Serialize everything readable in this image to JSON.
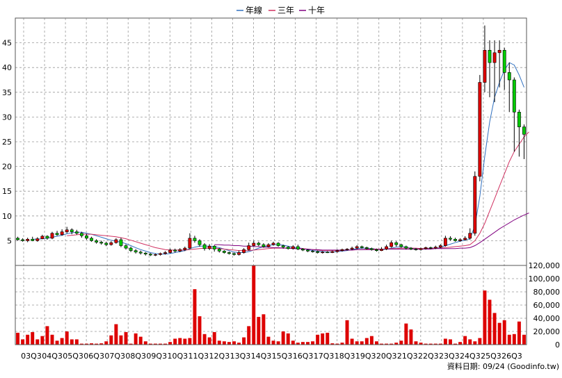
{
  "chart_data": [
    {
      "type": "candlestick",
      "legend": [
        {
          "name": "年線",
          "color": "#3070c0"
        },
        {
          "name": "三年",
          "color": "#d03060"
        },
        {
          "name": "十年",
          "color": "#800080"
        }
      ],
      "legend_placement": "top-center",
      "up_color": "#dd0000",
      "down_color": "#00cc00",
      "ylim": [
        0,
        50
      ],
      "y_ticks": [
        5,
        10,
        15,
        20,
        25,
        30,
        35,
        40,
        45
      ],
      "grid": true,
      "x_labels": [
        "03Q3",
        "04Q3",
        "05Q3",
        "06Q3",
        "07Q3",
        "08Q3",
        "09Q3",
        "10Q3",
        "11Q3",
        "12Q3",
        "13Q3",
        "14Q3",
        "15Q3",
        "16Q3",
        "17Q3",
        "18Q3",
        "19Q3",
        "20Q3",
        "21Q3",
        "22Q3",
        "23Q3",
        "24Q3",
        "25Q3",
        "26Q3"
      ],
      "candles": [
        [
          5.5,
          5.2,
          5.8,
          5.0
        ],
        [
          5.2,
          5.0,
          5.5,
          4.8
        ],
        [
          5.0,
          5.3,
          5.6,
          4.7
        ],
        [
          5.3,
          5.0,
          5.8,
          4.9
        ],
        [
          5.0,
          5.4,
          5.7,
          4.8
        ],
        [
          5.4,
          5.9,
          6.2,
          5.3
        ],
        [
          5.9,
          5.5,
          6.1,
          5.2
        ],
        [
          5.5,
          6.5,
          6.8,
          5.3
        ],
        [
          6.5,
          6.2,
          7.0,
          6.0
        ],
        [
          6.2,
          6.8,
          7.3,
          6.0
        ],
        [
          6.8,
          7.2,
          7.8,
          6.5
        ],
        [
          7.2,
          6.8,
          7.5,
          6.3
        ],
        [
          6.8,
          6.5,
          7.2,
          6.2
        ],
        [
          6.5,
          6.0,
          6.8,
          5.6
        ],
        [
          6.0,
          5.5,
          6.4,
          5.2
        ],
        [
          5.5,
          5.0,
          5.8,
          4.8
        ],
        [
          5.0,
          4.7,
          5.3,
          4.4
        ],
        [
          4.7,
          4.5,
          5.0,
          4.2
        ],
        [
          4.5,
          4.2,
          4.8,
          3.9
        ],
        [
          4.2,
          4.6,
          4.9,
          4.0
        ],
        [
          4.6,
          5.2,
          5.5,
          4.4
        ],
        [
          5.2,
          4.0,
          5.6,
          3.7
        ],
        [
          4.0,
          3.5,
          4.3,
          3.2
        ],
        [
          3.5,
          3.0,
          3.8,
          2.7
        ],
        [
          3.0,
          2.7,
          3.3,
          2.4
        ],
        [
          2.7,
          2.5,
          3.0,
          2.2
        ],
        [
          2.5,
          2.3,
          2.7,
          2.0
        ],
        [
          2.3,
          2.1,
          2.5,
          1.9
        ],
        [
          2.1,
          2.2,
          2.4,
          1.9
        ],
        [
          2.2,
          2.4,
          2.6,
          2.0
        ],
        [
          2.4,
          2.6,
          2.9,
          2.2
        ],
        [
          2.6,
          3.1,
          3.4,
          2.4
        ],
        [
          3.1,
          2.9,
          3.4,
          2.6
        ],
        [
          2.9,
          3.2,
          3.5,
          2.7
        ],
        [
          3.2,
          3.5,
          3.8,
          2.9
        ],
        [
          3.5,
          5.5,
          6.5,
          3.3
        ],
        [
          5.5,
          5.0,
          6.0,
          4.6
        ],
        [
          5.0,
          4.2,
          5.3,
          3.8
        ],
        [
          4.2,
          3.4,
          4.5,
          3.0
        ],
        [
          3.4,
          3.9,
          4.3,
          3.1
        ],
        [
          3.9,
          3.3,
          4.1,
          2.8
        ],
        [
          3.3,
          2.9,
          3.5,
          2.6
        ],
        [
          2.9,
          2.6,
          3.1,
          2.4
        ],
        [
          2.6,
          2.4,
          2.8,
          2.2
        ],
        [
          2.4,
          2.2,
          2.6,
          2.0
        ],
        [
          2.2,
          2.6,
          3.0,
          2.0
        ],
        [
          2.6,
          3.2,
          3.5,
          2.4
        ],
        [
          3.2,
          4.0,
          4.6,
          3.0
        ],
        [
          4.0,
          4.5,
          5.0,
          3.8
        ],
        [
          4.5,
          4.2,
          4.8,
          3.9
        ],
        [
          4.2,
          3.8,
          4.5,
          3.6
        ],
        [
          3.8,
          4.2,
          4.5,
          3.6
        ],
        [
          4.2,
          4.5,
          4.8,
          4.0
        ],
        [
          4.5,
          4.0,
          4.7,
          3.8
        ],
        [
          4.0,
          3.7,
          4.2,
          3.4
        ],
        [
          3.7,
          3.4,
          3.9,
          3.2
        ],
        [
          3.4,
          3.8,
          4.1,
          3.2
        ],
        [
          3.8,
          3.3,
          4.2,
          3.1
        ],
        [
          3.3,
          3.1,
          3.5,
          2.9
        ],
        [
          3.1,
          2.9,
          3.3,
          2.7
        ],
        [
          2.9,
          2.8,
          3.1,
          2.6
        ],
        [
          2.8,
          2.6,
          3.0,
          2.4
        ],
        [
          2.6,
          2.7,
          2.9,
          2.4
        ],
        [
          2.7,
          2.6,
          2.9,
          2.5
        ],
        [
          2.6,
          2.8,
          3.0,
          2.5
        ],
        [
          2.8,
          3.0,
          3.2,
          2.6
        ],
        [
          3.0,
          3.2,
          3.4,
          2.8
        ],
        [
          3.2,
          3.3,
          3.5,
          3.0
        ],
        [
          3.3,
          3.5,
          3.8,
          3.1
        ],
        [
          3.5,
          3.8,
          4.1,
          3.3
        ],
        [
          3.8,
          3.6,
          4.0,
          3.4
        ],
        [
          3.6,
          3.4,
          3.8,
          3.2
        ],
        [
          3.4,
          3.2,
          3.6,
          3.0
        ],
        [
          3.2,
          3.0,
          3.4,
          2.8
        ],
        [
          3.0,
          3.3,
          3.7,
          2.9
        ],
        [
          3.3,
          3.8,
          4.2,
          3.1
        ],
        [
          3.8,
          4.6,
          5.0,
          3.6
        ],
        [
          4.6,
          4.2,
          4.9,
          3.8
        ],
        [
          4.2,
          3.8,
          4.4,
          3.5
        ],
        [
          3.8,
          3.5,
          4.0,
          3.2
        ],
        [
          3.5,
          3.3,
          3.7,
          3.1
        ],
        [
          3.3,
          3.2,
          3.5,
          3.0
        ],
        [
          3.2,
          3.4,
          3.6,
          3.0
        ],
        [
          3.4,
          3.6,
          3.8,
          3.2
        ],
        [
          3.6,
          3.5,
          3.8,
          3.3
        ],
        [
          3.5,
          3.7,
          4.0,
          3.3
        ],
        [
          3.7,
          4.0,
          4.3,
          3.5
        ],
        [
          4.0,
          5.5,
          6.0,
          3.8
        ],
        [
          5.5,
          5.3,
          5.9,
          5.0
        ],
        [
          5.3,
          5.0,
          5.6,
          4.8
        ],
        [
          5.0,
          5.2,
          5.5,
          4.8
        ],
        [
          5.2,
          5.5,
          5.9,
          5.0
        ],
        [
          5.5,
          6.5,
          7.5,
          5.2
        ],
        [
          6.5,
          18.0,
          19.0,
          6.0
        ],
        [
          18.0,
          37.0,
          38.5,
          17.0
        ],
        [
          37.0,
          43.5,
          48.5,
          35.0
        ],
        [
          43.5,
          41.0,
          45.5,
          34.0
        ],
        [
          41.0,
          43.0,
          45.5,
          33.0
        ],
        [
          43.0,
          43.5,
          45.5,
          36.0
        ],
        [
          43.5,
          39.0,
          44.0,
          35.5
        ],
        [
          39.0,
          37.5,
          41.0,
          31.0
        ],
        [
          37.5,
          31.0,
          38.0,
          23.0
        ],
        [
          31.0,
          28.0,
          31.5,
          22.0
        ],
        [
          28.0,
          26.5,
          28.5,
          21.5
        ]
      ],
      "moving_averages": {
        "年線": [
          null,
          null,
          null,
          5.3,
          5.3,
          5.4,
          5.5,
          5.7,
          5.9,
          6.1,
          6.4,
          6.6,
          6.7,
          6.7,
          6.5,
          6.3,
          6.0,
          5.7,
          5.4,
          5.1,
          4.9,
          4.7,
          4.4,
          4.0,
          3.6,
          3.2,
          2.9,
          2.6,
          2.4,
          2.3,
          2.3,
          2.4,
          2.6,
          2.8,
          3.0,
          3.4,
          3.7,
          3.9,
          3.9,
          3.9,
          3.8,
          3.6,
          3.3,
          3.0,
          2.7,
          2.6,
          2.6,
          2.8,
          3.1,
          3.5,
          3.8,
          4.0,
          4.2,
          4.2,
          4.1,
          3.9,
          3.7,
          3.6,
          3.4,
          3.2,
          3.0,
          2.9,
          2.8,
          2.7,
          2.7,
          2.8,
          2.9,
          3.0,
          3.2,
          3.4,
          3.5,
          3.5,
          3.4,
          3.3,
          3.2,
          3.3,
          3.5,
          3.7,
          3.8,
          3.7,
          3.5,
          3.4,
          3.3,
          3.4,
          3.5,
          3.5,
          3.6,
          4.0,
          4.3,
          4.6,
          4.9,
          5.1,
          5.4,
          8.0,
          14.0,
          22.0,
          29.0,
          34.0,
          37.0,
          39.5,
          41.0,
          40.5,
          38.5,
          36.0
        ],
        "三年": [
          null,
          null,
          null,
          null,
          null,
          null,
          null,
          null,
          null,
          null,
          6.0,
          6.1,
          6.2,
          6.3,
          6.3,
          6.3,
          6.2,
          6.1,
          6.0,
          5.9,
          5.8,
          5.6,
          5.4,
          5.1,
          4.8,
          4.5,
          4.2,
          3.9,
          3.6,
          3.4,
          3.2,
          3.1,
          3.1,
          3.1,
          3.1,
          3.2,
          3.3,
          3.4,
          3.5,
          3.5,
          3.5,
          3.4,
          3.3,
          3.2,
          3.1,
          3.0,
          3.0,
          3.0,
          3.1,
          3.2,
          3.3,
          3.4,
          3.5,
          3.5,
          3.5,
          3.5,
          3.5,
          3.4,
          3.4,
          3.3,
          3.2,
          3.1,
          3.0,
          3.0,
          3.0,
          3.0,
          3.0,
          3.1,
          3.1,
          3.2,
          3.2,
          3.3,
          3.3,
          3.3,
          3.3,
          3.3,
          3.4,
          3.4,
          3.5,
          3.5,
          3.5,
          3.5,
          3.4,
          3.4,
          3.4,
          3.5,
          3.5,
          3.6,
          3.7,
          3.8,
          3.9,
          4.0,
          4.2,
          5.0,
          6.5,
          8.5,
          11.0,
          13.5,
          16.0,
          18.5,
          21.0,
          23.0,
          24.5,
          26.0,
          27.0
        ],
        "十年": [
          null,
          null,
          null,
          null,
          null,
          null,
          null,
          null,
          null,
          null,
          null,
          null,
          null,
          null,
          null,
          null,
          null,
          null,
          null,
          null,
          null,
          null,
          null,
          null,
          null,
          null,
          null,
          null,
          null,
          null,
          null,
          null,
          null,
          null,
          null,
          null,
          null,
          null,
          null,
          null,
          4.2,
          4.2,
          4.1,
          4.1,
          4.0,
          4.0,
          3.9,
          3.9,
          3.8,
          3.8,
          3.7,
          3.7,
          3.6,
          3.6,
          3.5,
          3.5,
          3.4,
          3.4,
          3.3,
          3.3,
          3.2,
          3.2,
          3.1,
          3.1,
          3.1,
          3.1,
          3.1,
          3.1,
          3.1,
          3.2,
          3.2,
          3.2,
          3.2,
          3.2,
          3.3,
          3.3,
          3.3,
          3.3,
          3.3,
          3.3,
          3.3,
          3.3,
          3.3,
          3.3,
          3.3,
          3.4,
          3.4,
          3.4,
          3.4,
          3.4,
          3.5,
          3.5,
          3.6,
          4.0,
          4.6,
          5.3,
          6.0,
          6.7,
          7.4,
          8.0,
          8.6,
          9.2,
          9.7,
          10.2,
          10.6
        ]
      }
    },
    {
      "type": "bar",
      "bar_color": "#dd0000",
      "ylim": [
        0,
        120000
      ],
      "y_ticks": [
        0,
        20000,
        40000,
        60000,
        80000,
        100000,
        120000
      ],
      "y_tick_labels": [
        "0",
        "20,000",
        "40,000",
        "60,000",
        "80,000",
        "100,000",
        "120,000"
      ],
      "grid": true,
      "values": [
        18000,
        8000,
        15000,
        19000,
        8000,
        13000,
        28000,
        15000,
        6000,
        10000,
        20000,
        8000,
        8000,
        1500,
        1500,
        2000,
        1500,
        2000,
        5000,
        14000,
        31000,
        14000,
        19000,
        1500,
        17000,
        12000,
        5000,
        1500,
        1500,
        1500,
        1500,
        4000,
        9000,
        10000,
        9000,
        10000,
        84000,
        43000,
        16000,
        11000,
        19000,
        6000,
        5000,
        4000,
        5000,
        3000,
        11000,
        28000,
        120000,
        42000,
        46000,
        12000,
        6000,
        5000,
        20000,
        17000,
        6000,
        3000,
        4000,
        4000,
        5000,
        15000,
        17000,
        18000,
        2000,
        1500,
        3000,
        37000,
        9000,
        5000,
        5000,
        10000,
        13000,
        5000,
        1500,
        1500,
        1500,
        3000,
        6000,
        32000,
        23000,
        5000,
        3000,
        1500,
        1500,
        1500,
        1500,
        9000,
        8000,
        1500,
        4000,
        13000,
        8000,
        5000,
        10000,
        82000,
        68000,
        48000,
        33000,
        37000,
        15000,
        16000,
        35000,
        15000
      ]
    }
  ],
  "footer": {
    "text": "資料日期: 09/24  (Goodinfo.tw)"
  }
}
